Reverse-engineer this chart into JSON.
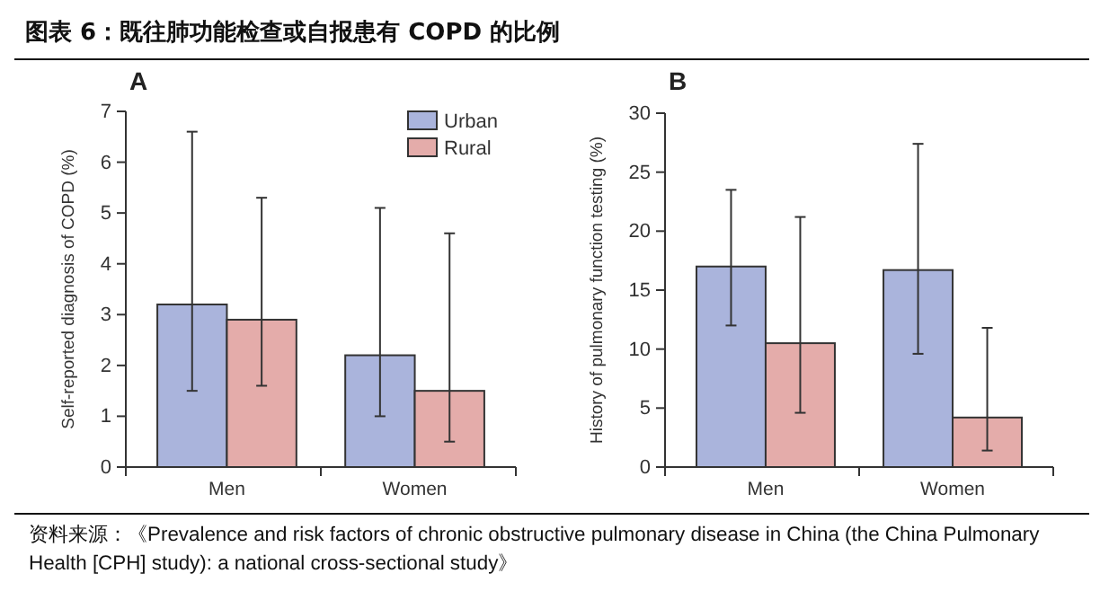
{
  "chart_data": [
    {
      "type": "other",
      "title": "图表 6：既往肺功能检查或自报患有 COPD 的比例",
      "annotations": [
        "资料来源：《Prevalence and risk factors of chronic obstructive pulmonary disease in China (the China Pulmonary Health [CPH] study): a national cross-sectional study》"
      ]
    },
    {
      "type": "bar",
      "title": "A",
      "ylabel": "Self-reported diagnosis of COPD (%)",
      "categories": [
        "Men",
        "Women"
      ],
      "ylim": [
        0,
        7
      ],
      "yticks": [
        0,
        1,
        2,
        3,
        4,
        5,
        6,
        7
      ],
      "legend": "top right",
      "grid": false,
      "series": [
        {
          "name": "Urban",
          "color": "#aab4dc",
          "values": [
            3.2,
            2.2
          ],
          "errors": [
            [
              1.5,
              6.6
            ],
            [
              1.0,
              5.1
            ]
          ]
        },
        {
          "name": "Rural",
          "color": "#e4acaa",
          "values": [
            2.9,
            1.5
          ],
          "errors": [
            [
              1.6,
              5.3
            ],
            [
              0.5,
              4.6
            ]
          ]
        }
      ]
    },
    {
      "type": "bar",
      "title": "B",
      "ylabel": "History of pulmonary function testing (%)",
      "categories": [
        "Men",
        "Women"
      ],
      "ylim": [
        0,
        30
      ],
      "yticks": [
        0,
        5,
        10,
        15,
        20,
        25,
        30
      ],
      "legend": false,
      "grid": false,
      "series": [
        {
          "color": "#aab4dc",
          "values": [
            17.0,
            16.7
          ],
          "errors": [
            [
              12.0,
              23.5
            ],
            [
              9.6,
              27.4
            ]
          ]
        },
        {
          "color": "#e4acaa",
          "values": [
            10.5,
            4.2
          ],
          "errors": [
            [
              4.6,
              21.2
            ],
            [
              1.4,
              11.8
            ]
          ]
        }
      ]
    }
  ]
}
